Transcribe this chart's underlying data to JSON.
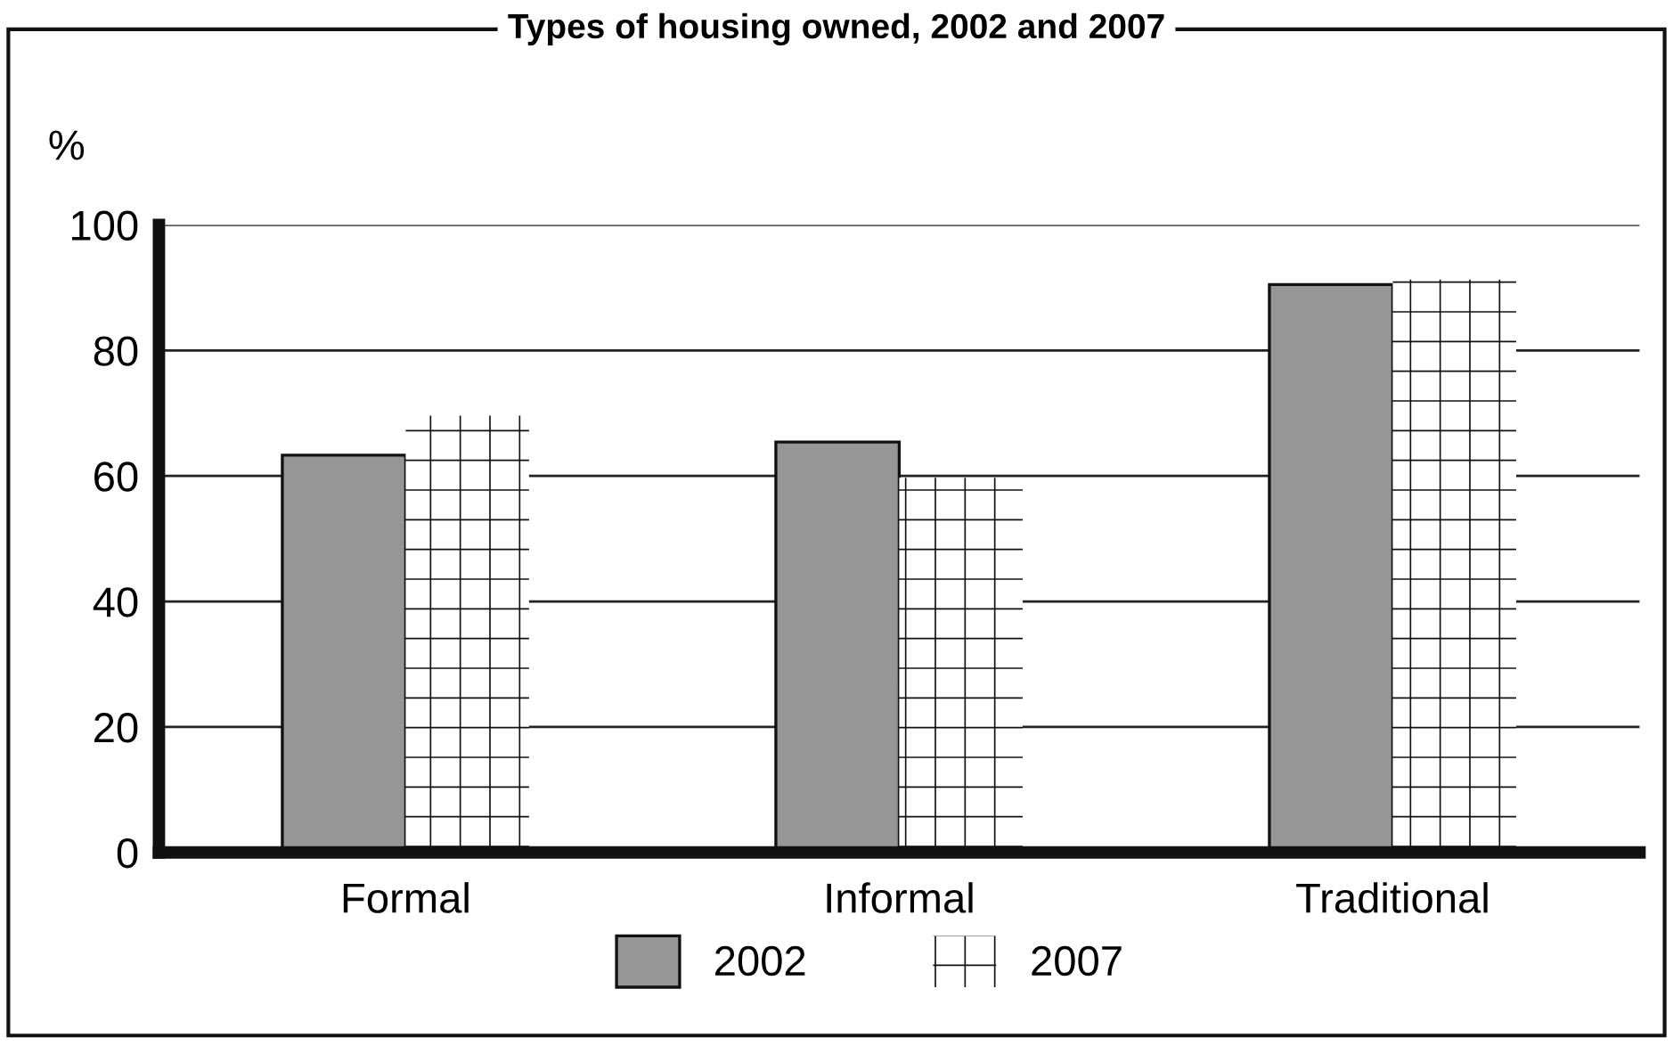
{
  "chart_data": {
    "type": "bar",
    "title": "Types of housing owned, 2002 and 2007",
    "ylabel": "%",
    "categories": [
      "Formal",
      "Informal",
      "Traditional"
    ],
    "series": [
      {
        "name": "2002",
        "color": "#969696",
        "values": [
          63.3,
          65.4,
          90.5
        ]
      },
      {
        "name": "2007",
        "color": "#ffffff",
        "values": [
          69.6,
          59.7,
          91.3
        ]
      }
    ],
    "ylim": [
      0,
      100
    ],
    "yticks": [
      0,
      20,
      40,
      60,
      80,
      100
    ],
    "grid": "y",
    "legend": "bottom"
  }
}
